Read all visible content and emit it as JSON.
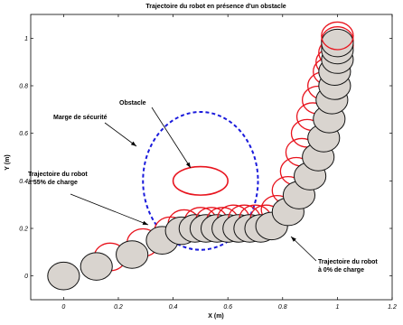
{
  "chart_data": {
    "type": "scatter",
    "title": "Trajectoire du robot en présence d'un obstacle",
    "xlabel": "X (m)",
    "ylabel": "Y (m)",
    "xlim": [
      -0.12,
      1.2
    ],
    "ylim": [
      -0.1,
      1.1
    ],
    "grid": false,
    "x_ticks": [
      {
        "value": 0,
        "label": "0"
      },
      {
        "value": 0.2,
        "label": "0.2"
      },
      {
        "value": 0.4,
        "label": "0.4"
      },
      {
        "value": 0.6,
        "label": "0.6"
      },
      {
        "value": 0.8,
        "label": "0.8"
      },
      {
        "value": 1,
        "label": "1"
      },
      {
        "value": 1.2,
        "label": "1.2"
      }
    ],
    "y_ticks": [
      {
        "value": 0,
        "label": "0"
      },
      {
        "value": 0.2,
        "label": "0.2"
      },
      {
        "value": 0.4,
        "label": "0.4"
      },
      {
        "value": 0.6,
        "label": "0.6"
      },
      {
        "value": 0.8,
        "label": "0.8"
      },
      {
        "value": 1,
        "label": "1"
      }
    ],
    "robot_radius": 0.058,
    "obstacle": {
      "x": 0.5,
      "y": 0.4,
      "rx": 0.1,
      "ry": 0.06,
      "color": "#e8141e"
    },
    "safety_margin": {
      "x": 0.5,
      "y": 0.4,
      "rx": 0.21,
      "ry": 0.29,
      "color": "#1a1adc"
    },
    "colors": {
      "black_circle_fill": "#d9d4cf",
      "black_stroke": "#111111",
      "red_stroke": "#e8141e"
    },
    "series": [
      {
        "name": "Trajectoire du robot à 0% de charge",
        "points": [
          [
            0,
            0
          ],
          [
            0.12,
            0.04
          ],
          [
            0.25,
            0.09
          ],
          [
            0.36,
            0.15
          ],
          [
            0.43,
            0.19
          ],
          [
            0.48,
            0.2
          ],
          [
            0.52,
            0.2
          ],
          [
            0.56,
            0.2
          ],
          [
            0.6,
            0.2
          ],
          [
            0.64,
            0.2
          ],
          [
            0.68,
            0.2
          ],
          [
            0.72,
            0.2
          ],
          [
            0.76,
            0.21
          ],
          [
            0.82,
            0.27
          ],
          [
            0.86,
            0.34
          ],
          [
            0.9,
            0.42
          ],
          [
            0.93,
            0.5
          ],
          [
            0.95,
            0.58
          ],
          [
            0.97,
            0.66
          ],
          [
            0.98,
            0.74
          ],
          [
            0.99,
            0.8
          ],
          [
            0.99,
            0.86
          ],
          [
            1,
            0.91
          ],
          [
            1,
            0.95
          ],
          [
            1,
            0.98
          ]
        ]
      },
      {
        "name": "Trajectoire du robot à 55% de charge",
        "points": [
          [
            0.17,
            0.08
          ],
          [
            0.29,
            0.14
          ],
          [
            0.39,
            0.19
          ],
          [
            0.44,
            0.22
          ],
          [
            0.5,
            0.23
          ],
          [
            0.54,
            0.23
          ],
          [
            0.58,
            0.23
          ],
          [
            0.62,
            0.24
          ],
          [
            0.66,
            0.24
          ],
          [
            0.7,
            0.24
          ],
          [
            0.74,
            0.24
          ],
          [
            0.78,
            0.28
          ],
          [
            0.82,
            0.36
          ],
          [
            0.85,
            0.44
          ],
          [
            0.87,
            0.52
          ],
          [
            0.89,
            0.6
          ],
          [
            0.91,
            0.67
          ],
          [
            0.93,
            0.74
          ],
          [
            0.95,
            0.8
          ],
          [
            0.97,
            0.86
          ],
          [
            0.98,
            0.9
          ],
          [
            0.99,
            0.94
          ],
          [
            1,
            0.97
          ],
          [
            1,
            0.99
          ],
          [
            1,
            1.01
          ]
        ]
      }
    ],
    "annotations": [
      {
        "text": "Obstacle",
        "lines": [
          "Obstacle"
        ]
      },
      {
        "text": "Marge de sécurité",
        "lines": [
          "Marge de sécurité"
        ]
      },
      {
        "text": "Trajectoire du robot à 55% de charge",
        "lines": [
          "Trajectoire du robot",
          "à 55% de charge"
        ]
      },
      {
        "text": "Trajectoire du robot à 0% de charge",
        "lines": [
          "Trajectoire du robot",
          "à 0% de charge"
        ]
      }
    ]
  }
}
